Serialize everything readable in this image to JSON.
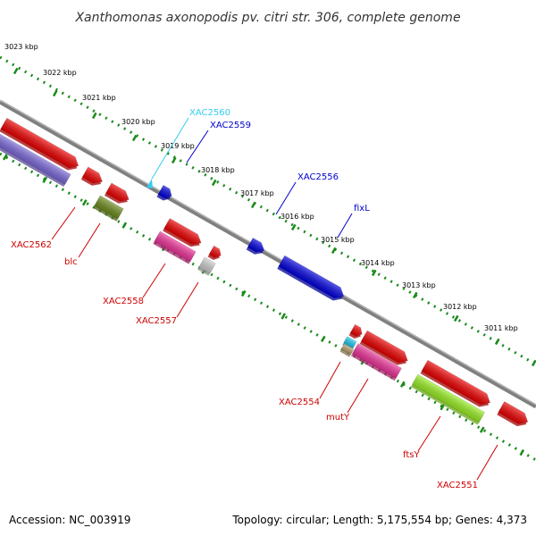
{
  "title": "Xanthomonas axonopodis pv. citri str. 306, complete genome",
  "footer": {
    "accession": "Accession: NC_003919",
    "summary": "Topology: circular; Length: 5,175,554 bp; Genes: 4,373"
  },
  "colors": {
    "backbone": "#808080",
    "ruler": "#1a8a1a",
    "forward_label": "#0000cc",
    "reverse_label": "#cc0000",
    "cyan_label": "#33ccee"
  },
  "ruler": {
    "ticks": [
      {
        "label": "3023 kbp"
      },
      {
        "label": "3022 kbp"
      },
      {
        "label": "3021 kbp"
      },
      {
        "label": "3020 kbp"
      },
      {
        "label": "3019 kbp"
      },
      {
        "label": "3018 kbp"
      },
      {
        "label": "3017 kbp"
      },
      {
        "label": "3016 kbp"
      },
      {
        "label": "3015 kbp"
      },
      {
        "label": "3014 kbp"
      },
      {
        "label": "3013 kbp"
      },
      {
        "label": "3012 kbp"
      },
      {
        "label": "3011 kbp"
      }
    ]
  },
  "gene_labels": {
    "forward": [
      {
        "name": "XAC2560",
        "color": "#33ccee"
      },
      {
        "name": "XAC2559",
        "color": "#0000cc"
      },
      {
        "name": "XAC2556",
        "color": "#0000cc"
      },
      {
        "name": "fixL",
        "color": "#0000cc"
      }
    ],
    "reverse": [
      {
        "name": "XAC2562"
      },
      {
        "name": "blc"
      },
      {
        "name": "XAC2558"
      },
      {
        "name": "XAC2557"
      },
      {
        "name": "XAC2554"
      },
      {
        "name": "mutY"
      },
      {
        "name": "ftsY"
      },
      {
        "name": "XAC2551"
      }
    ]
  },
  "features": [
    {
      "name": "red-block",
      "color": "#ee0000"
    },
    {
      "name": "purple-block",
      "color": "#7b68d8"
    },
    {
      "name": "olive-block",
      "color": "#6e8b1e"
    },
    {
      "name": "magenta-block",
      "color": "#ee3399"
    },
    {
      "name": "gray-block",
      "color": "#cccccc"
    },
    {
      "name": "blue-block",
      "color": "#0000dd"
    },
    {
      "name": "cyan-block",
      "color": "#22ccee"
    },
    {
      "name": "tan-block",
      "color": "#bba070"
    },
    {
      "name": "lime-block",
      "color": "#99ee22"
    }
  ]
}
